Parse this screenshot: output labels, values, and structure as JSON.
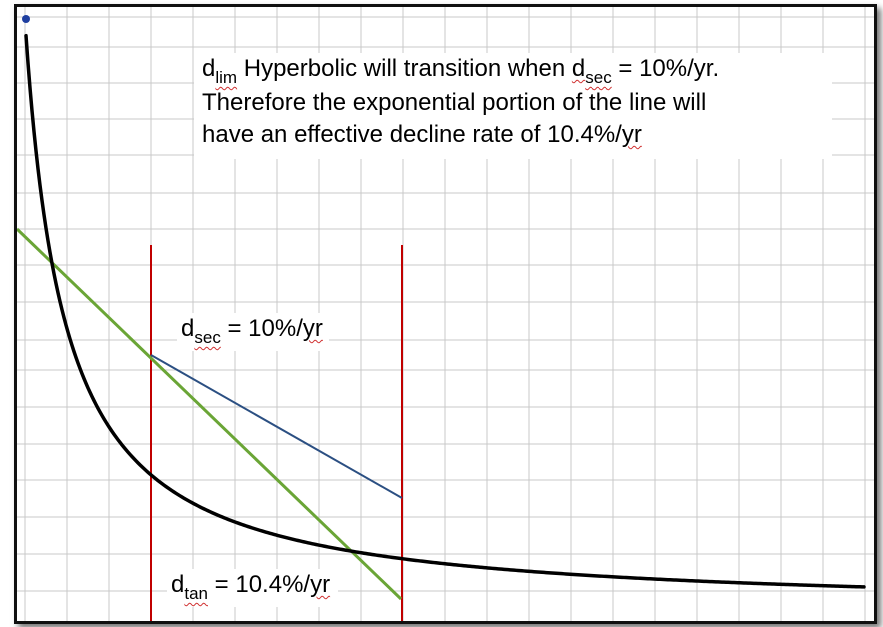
{
  "diagram": {
    "annotation": {
      "line1_d": "d",
      "line1_sub": "lim",
      "line1_mid": " Hyperbolic will transition when ",
      "line1_d2": "d",
      "line1_sub2": "sec",
      "line1_end": " = 10%/yr.",
      "line2": "Therefore the exponential portion of the line will",
      "line3_pre": "have an effective decline rate of 10.4%/",
      "line3_unit": "yr"
    },
    "secant_label": {
      "d": "d",
      "sub": "sec",
      "mid": " = 10%/",
      "unit": "yr"
    },
    "tangent_label": {
      "d": "d",
      "sub": "tan",
      "mid": " = 10.4%/",
      "unit": "yr"
    },
    "colors": {
      "decline_curve": "#000000",
      "tangent_line": "#6aa536",
      "secant_line": "#2b4f82",
      "marker_lines": "#c00000",
      "grid": "#c8c8c8",
      "start_point": "#1f3fa0"
    }
  }
}
